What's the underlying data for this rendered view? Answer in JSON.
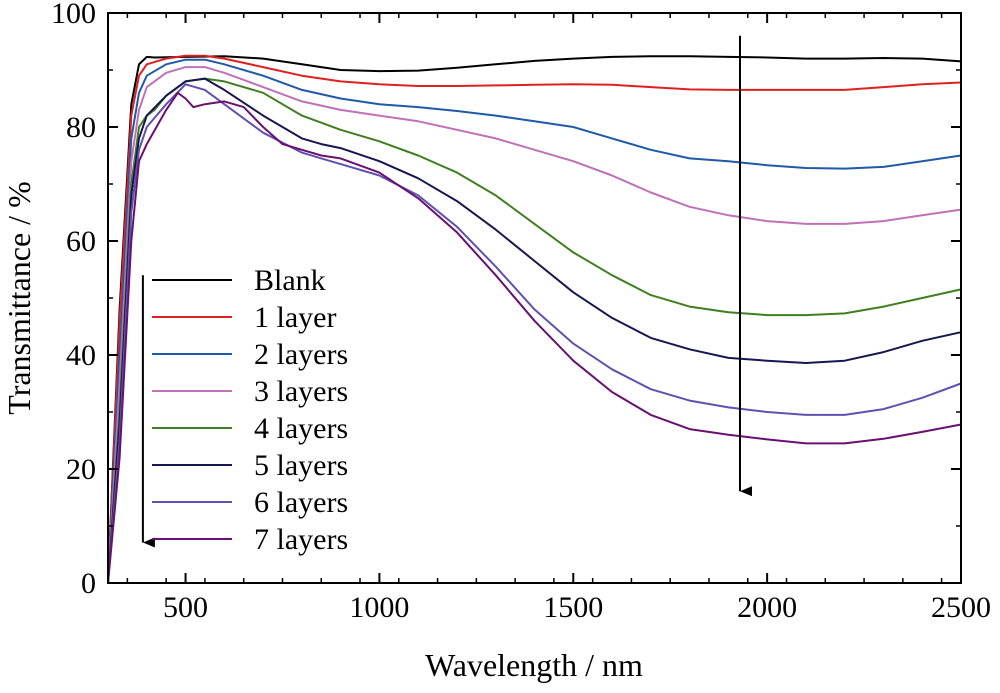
{
  "chart_data": {
    "type": "line",
    "title": "",
    "xlabel": "Wavelength / nm",
    "ylabel": "Transmittance / %",
    "xlim": [
      300,
      2500
    ],
    "ylim": [
      0,
      100
    ],
    "xticks": [
      500,
      1000,
      1500,
      2000,
      2500
    ],
    "yticks": [
      0,
      20,
      40,
      60,
      80,
      100
    ],
    "grid": false,
    "legend_position": "left-middle",
    "arrows": [
      {
        "x": [
          1930,
          1930
        ],
        "y": [
          96,
          14
        ],
        "meaning": "direction of increasing layers"
      },
      {
        "x": [
          390,
          390
        ],
        "y": [
          54,
          5
        ],
        "meaning": "direction of increasing layers"
      }
    ],
    "series": [
      {
        "name": "Blank",
        "color": "#000000",
        "x": [
          300,
          330,
          360,
          380,
          400,
          420,
          500,
          600,
          700,
          800,
          900,
          1000,
          1100,
          1200,
          1300,
          1400,
          1500,
          1600,
          1700,
          1800,
          1900,
          2000,
          2100,
          2200,
          2300,
          2400,
          2500
        ],
        "y": [
          0,
          48,
          84,
          91,
          92.3,
          92.2,
          92.3,
          92.4,
          92,
          91,
          90,
          89.8,
          89.9,
          90.4,
          91,
          91.6,
          92,
          92.3,
          92.4,
          92.4,
          92.3,
          92.2,
          92,
          92,
          92.1,
          92,
          91.5
        ]
      },
      {
        "name": "1 layer",
        "color": "#e02020",
        "x": [
          300,
          330,
          360,
          380,
          400,
          450,
          500,
          550,
          600,
          700,
          800,
          900,
          1000,
          1100,
          1200,
          1300,
          1400,
          1500,
          1600,
          1700,
          1800,
          1900,
          2000,
          2100,
          2200,
          2300,
          2400,
          2500
        ],
        "y": [
          0,
          46,
          82,
          89,
          91,
          92,
          92.5,
          92.5,
          92,
          90.5,
          89,
          88,
          87.5,
          87.2,
          87.2,
          87.3,
          87.4,
          87.5,
          87.4,
          87,
          86.6,
          86.5,
          86.5,
          86.5,
          86.5,
          87,
          87.5,
          87.8
        ]
      },
      {
        "name": "2 layers",
        "color": "#1f5aa6",
        "x": [
          300,
          330,
          360,
          380,
          400,
          450,
          500,
          550,
          600,
          700,
          800,
          900,
          1000,
          1100,
          1200,
          1300,
          1400,
          1500,
          1600,
          1700,
          1800,
          1900,
          2000,
          2100,
          2200,
          2300,
          2400,
          2500
        ],
        "y": [
          0,
          40,
          78,
          86,
          89,
          91,
          91.8,
          91.8,
          91,
          89,
          86.5,
          85,
          84,
          83.5,
          82.8,
          82,
          81,
          80,
          78,
          76,
          74.5,
          74,
          73.3,
          72.8,
          72.7,
          73,
          74,
          75
        ]
      },
      {
        "name": "3 layers",
        "color": "#c070b8",
        "x": [
          300,
          330,
          360,
          380,
          400,
          450,
          500,
          550,
          600,
          700,
          800,
          900,
          1000,
          1100,
          1200,
          1300,
          1400,
          1500,
          1600,
          1700,
          1800,
          1900,
          2000,
          2100,
          2200,
          2300,
          2400,
          2500
        ],
        "y": [
          0,
          35,
          74,
          83,
          87,
          89.5,
          90.5,
          90.5,
          89.5,
          87,
          84.5,
          83,
          82,
          81,
          79.5,
          78,
          76,
          74,
          71.5,
          68.5,
          66,
          64.5,
          63.5,
          63,
          63,
          63.5,
          64.5,
          65.5
        ]
      },
      {
        "name": "4 layers",
        "color": "#3f7f1f",
        "x": [
          300,
          330,
          360,
          380,
          400,
          420,
          450,
          500,
          550,
          600,
          700,
          800,
          900,
          1000,
          1100,
          1200,
          1300,
          1400,
          1500,
          1600,
          1700,
          1800,
          1900,
          2000,
          2100,
          2200,
          2300,
          2400,
          2500
        ],
        "y": [
          0,
          30,
          70,
          80,
          82,
          83,
          85.5,
          88,
          88.5,
          88,
          86,
          82,
          79.5,
          77.5,
          75,
          72,
          68,
          63,
          58,
          54,
          50.5,
          48.5,
          47.5,
          47,
          47,
          47.3,
          48.5,
          50,
          51.5
        ]
      },
      {
        "name": "5 layers",
        "color": "#161650",
        "x": [
          300,
          330,
          360,
          380,
          400,
          450,
          500,
          550,
          600,
          700,
          800,
          850,
          900,
          1000,
          1100,
          1200,
          1300,
          1400,
          1500,
          1600,
          1700,
          1800,
          1900,
          2000,
          2100,
          2200,
          2300,
          2400,
          2500
        ],
        "y": [
          0,
          28,
          68,
          78,
          82,
          85.5,
          88,
          88.5,
          86.5,
          82,
          78,
          77,
          76.3,
          74,
          71,
          67,
          62,
          56.5,
          51,
          46.5,
          43,
          41,
          39.5,
          39,
          38.6,
          39,
          40.5,
          42.5,
          44
        ]
      },
      {
        "name": "6 layers",
        "color": "#6050b0",
        "x": [
          300,
          330,
          360,
          380,
          400,
          450,
          500,
          550,
          600,
          700,
          800,
          850,
          900,
          1000,
          1100,
          1200,
          1300,
          1400,
          1500,
          1600,
          1700,
          1800,
          1900,
          2000,
          2100,
          2200,
          2300,
          2400,
          2500
        ],
        "y": [
          0,
          25,
          65,
          76,
          80,
          84,
          87.5,
          86.5,
          84,
          79,
          75.5,
          74.5,
          73.5,
          71.5,
          68,
          62.5,
          55.5,
          48,
          42,
          37.5,
          34,
          32,
          30.8,
          30,
          29.5,
          29.5,
          30.5,
          32.5,
          35
        ]
      },
      {
        "name": "7 layers",
        "color": "#6a1070",
        "x": [
          300,
          330,
          360,
          380,
          400,
          450,
          480,
          500,
          520,
          550,
          600,
          650,
          700,
          750,
          800,
          850,
          900,
          1000,
          1100,
          1200,
          1300,
          1400,
          1500,
          1600,
          1700,
          1800,
          1900,
          2000,
          2100,
          2200,
          2300,
          2400,
          2500
        ],
        "y": [
          0,
          22,
          60,
          74,
          77,
          83,
          86,
          85,
          83.5,
          84,
          84.5,
          83.5,
          80,
          77,
          76,
          75,
          74.5,
          72,
          67.5,
          61.5,
          54,
          46,
          39,
          33.5,
          29.5,
          27,
          26,
          25.2,
          24.5,
          24.5,
          25.3,
          26.5,
          27.8
        ]
      }
    ]
  }
}
